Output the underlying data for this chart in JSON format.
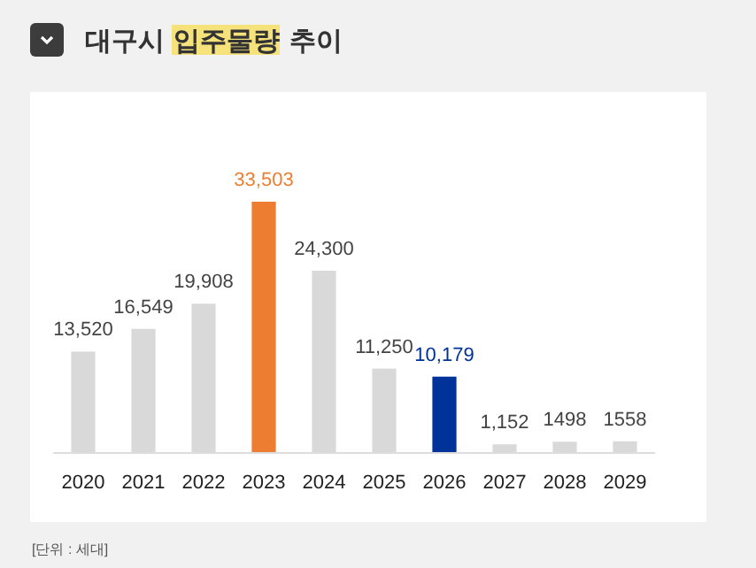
{
  "chart_data": {
    "type": "bar",
    "title": "대구시 입주물량 추이",
    "categories": [
      "2020",
      "2021",
      "2022",
      "2023",
      "2024",
      "2025",
      "2026",
      "2027",
      "2028",
      "2029"
    ],
    "values": [
      13520,
      16549,
      19908,
      33503,
      24300,
      11250,
      10179,
      1152,
      1498,
      1558
    ],
    "colors": [
      "#d9d9d9",
      "#d9d9d9",
      "#d9d9d9",
      "#ed7d31",
      "#d9d9d9",
      "#d9d9d9",
      "#003399",
      "#d9d9d9",
      "#d9d9d9",
      "#d9d9d9"
    ],
    "value_labels": [
      "13,520",
      "16,549",
      "19,908",
      "33,503",
      "24,300",
      "11,250",
      "10,179",
      "1,152",
      "1498",
      "1558"
    ],
    "relative": false,
    "annotations": [
      "[단위 : 세대]"
    ]
  }
}
